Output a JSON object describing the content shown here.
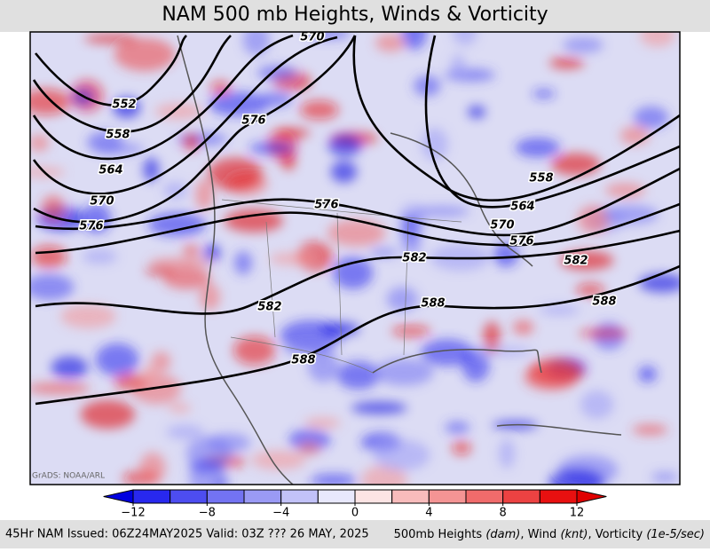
{
  "header": {
    "title": "NAM 500 mb Heights, Winds & Vorticity"
  },
  "map": {
    "credit": "GrADS: NOAA/ARL",
    "contour_labels": [
      570,
      552,
      558,
      564,
      570,
      576,
      576,
      576,
      558,
      564,
      570,
      576,
      582,
      582,
      582,
      588,
      588,
      588
    ]
  },
  "colorbar": {
    "levels": [
      -12,
      -10,
      -8,
      -6,
      -4,
      -2,
      0,
      2,
      4,
      6,
      8,
      10,
      12
    ],
    "colors": [
      "#0000e0",
      "#2828ee",
      "#4d4df0",
      "#7373f2",
      "#9a9af5",
      "#c2c2f8",
      "#e8e8fc",
      "#fce4e4",
      "#f8bcbc",
      "#f49494",
      "#f06b6b",
      "#ec4242",
      "#e81010",
      "#e00000"
    ],
    "ticks": [
      {
        "value": -12,
        "label": "−12"
      },
      {
        "value": -8,
        "label": "−8"
      },
      {
        "value": -4,
        "label": "−4"
      },
      0,
      4,
      8,
      12
    ]
  },
  "footer": {
    "left": "45Hr NAM Issued: 06Z24MAY2025 Valid: 03Z ??? 26 MAY, 2025",
    "right": [
      "500mb Heights ",
      "(dam)",
      ", Wind ",
      "(knt)",
      ", Vorticity ",
      "(1e-5/sec)"
    ]
  }
}
